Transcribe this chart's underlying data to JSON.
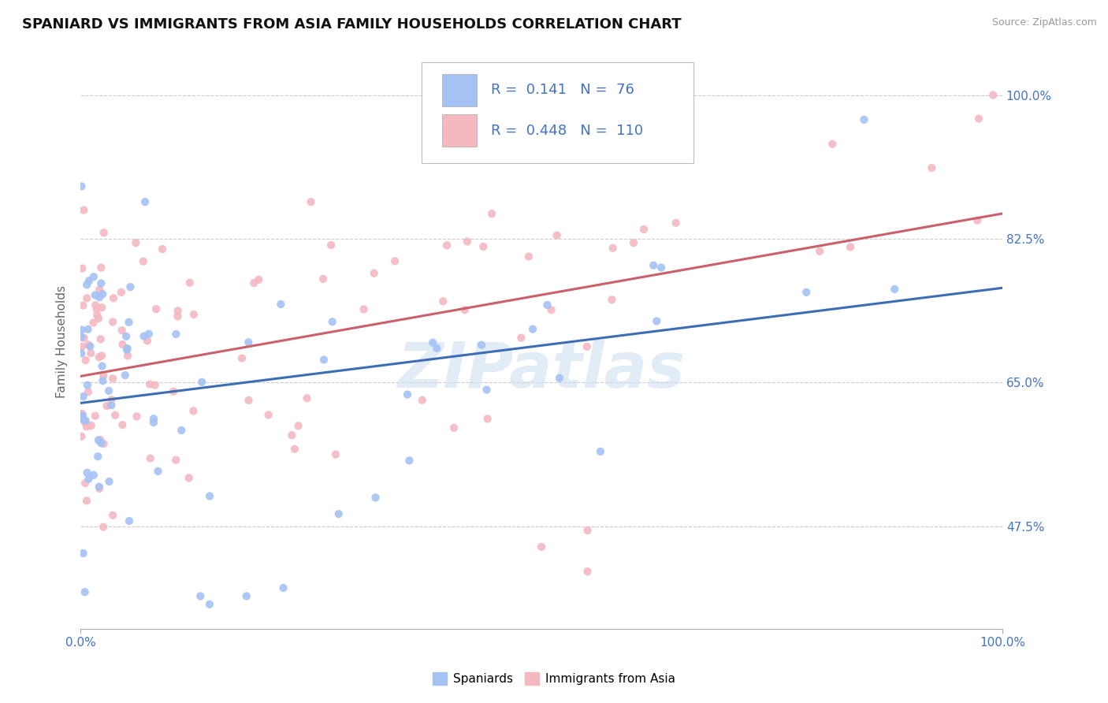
{
  "title": "SPANIARD VS IMMIGRANTS FROM ASIA FAMILY HOUSEHOLDS CORRELATION CHART",
  "source_text": "Source: ZipAtlas.com",
  "ylabel": "Family Households",
  "watermark": "ZIPatlas",
  "blue_R": 0.141,
  "blue_N": 76,
  "pink_R": 0.448,
  "pink_N": 110,
  "blue_color": "#a4c2f4",
  "pink_color": "#f4b8c1",
  "blue_line_color": "#3d6eb5",
  "pink_line_color": "#c9606a",
  "legend_label_blue": "Spaniards",
  "legend_label_pink": "Immigrants from Asia",
  "xlim": [
    0.0,
    1.0
  ],
  "ylim": [
    0.35,
    1.05
  ],
  "yticks": [
    0.475,
    0.65,
    0.825,
    1.0
  ],
  "ytick_labels": [
    "47.5%",
    "65.0%",
    "82.5%",
    "100.0%"
  ],
  "xtick_labels": [
    "0.0%",
    "100.0%"
  ],
  "grid_color": "#cccccc",
  "background_color": "#ffffff",
  "title_fontsize": 13,
  "axis_label_fontsize": 11,
  "tick_fontsize": 11,
  "stat_fontsize": 14,
  "legend_text_color": "#1a1aff",
  "stat_color": "#4472c4"
}
